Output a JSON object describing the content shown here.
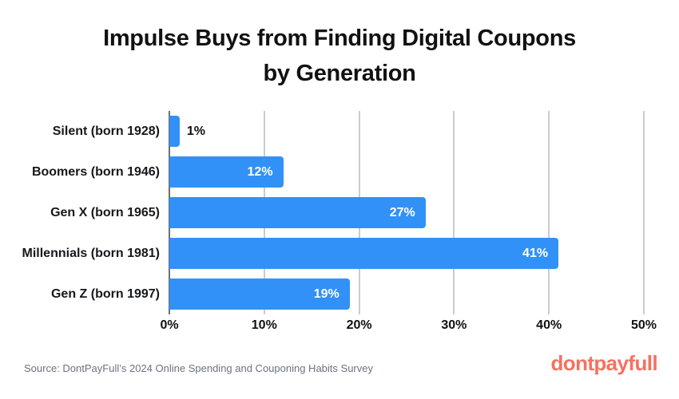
{
  "title": {
    "lines": [
      "Impulse Buys from Finding Digital Coupons",
      "by Generation"
    ]
  },
  "chart_data": {
    "type": "bar",
    "orientation": "horizontal",
    "title": "Impulse Buys from Finding Digital Coupons by Generation",
    "categories": [
      "Silent (born 1928)",
      "Boomers (born 1946)",
      "Gen X (born 1965)",
      "Millennials (born 1981)",
      "Gen Z (born 1997)"
    ],
    "values": [
      1,
      12,
      27,
      41,
      19
    ],
    "value_labels": [
      "1%",
      "12%",
      "27%",
      "41%",
      "19%"
    ],
    "xlabel": "",
    "ylabel": "",
    "xlim": [
      0,
      50
    ],
    "ticks": [
      0,
      10,
      20,
      30,
      40,
      50
    ],
    "tick_labels": [
      "0%",
      "10%",
      "20%",
      "30%",
      "40%",
      "50%"
    ],
    "grid": "vertical",
    "legend": "none",
    "bar_color": "#3191f7",
    "gridline_color": "#cccccc",
    "axis_line_color": "#6e6e6e",
    "value_label_color_inside": "#ffffff",
    "value_label_color_outside": "#111111"
  },
  "footer": {
    "source": "Source: DontPayFull’s 2024 Online Spending and Couponing Habits Survey",
    "logo": "dontpayfull",
    "logo_color": "#f7705f"
  }
}
